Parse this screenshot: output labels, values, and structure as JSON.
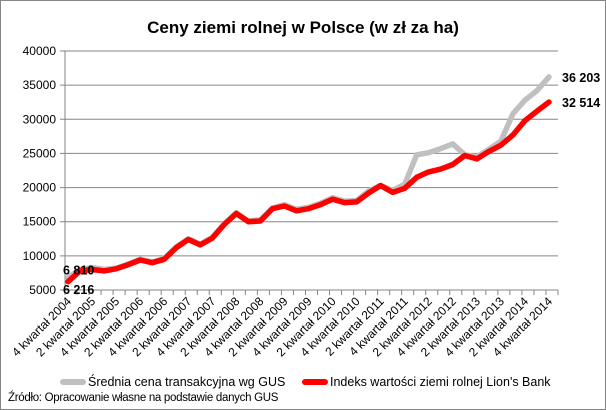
{
  "chart_data": {
    "type": "line",
    "title": "Ceny ziemi rolnej w Polsce (w zł za ha)",
    "xlabel": "",
    "ylabel": "",
    "ylim": [
      5000,
      40000
    ],
    "yticks": [
      "5000",
      "10000",
      "15000",
      "20000",
      "25000",
      "30000",
      "35000",
      "40000"
    ],
    "grid": true,
    "legend_position": "bottom",
    "x_tick_labels": [
      "4 kwartał 2004",
      "2 kwartał 2005",
      "4 kwartał 2005",
      "2 kwartał 2006",
      "4 kwartał 2006",
      "2 kwartał 2007",
      "4 kwartał 2007",
      "2 kwartał 2008",
      "4 kwartał 2008",
      "2 kwartał 2009",
      "4 kwartał 2009",
      "2 kwartał 2010",
      "4 kwartał 2010",
      "2 kwartał 2011",
      "4 kwartał 2011",
      "2 kwartał 2012",
      "4 kwartał 2012",
      "2 kwartał 2013",
      "4 kwartał 2013",
      "2 kwartał 2014",
      "4 kwartał 2014"
    ],
    "x": [
      "Q4 2004",
      "Q1 2005",
      "Q2 2005",
      "Q3 2005",
      "Q4 2005",
      "Q1 2006",
      "Q2 2006",
      "Q3 2006",
      "Q4 2006",
      "Q1 2007",
      "Q2 2007",
      "Q3 2007",
      "Q4 2007",
      "Q1 2008",
      "Q2 2008",
      "Q3 2008",
      "Q4 2008",
      "Q1 2009",
      "Q2 2009",
      "Q3 2009",
      "Q4 2009",
      "Q1 2010",
      "Q2 2010",
      "Q3 2010",
      "Q4 2010",
      "Q1 2011",
      "Q2 2011",
      "Q3 2011",
      "Q4 2011",
      "Q1 2012",
      "Q2 2012",
      "Q3 2012",
      "Q4 2012",
      "Q1 2013",
      "Q2 2013",
      "Q3 2013",
      "Q4 2013",
      "Q1 2014",
      "Q2 2014",
      "Q3 2014",
      "Q4 2014"
    ],
    "series": [
      {
        "name": "Średnia cena transakcyjna wg GUS",
        "color": "#c0c0c0",
        "values": [
          6810,
          8000,
          8300,
          8000,
          8200,
          8800,
          9500,
          9100,
          9600,
          11300,
          12500,
          11700,
          12700,
          14700,
          16300,
          15100,
          15300,
          17000,
          17500,
          16800,
          17100,
          17700,
          18500,
          18000,
          18100,
          19500,
          20300,
          19600,
          20500,
          24800,
          25100,
          25700,
          26400,
          24800,
          24500,
          25600,
          26800,
          30800,
          32800,
          34200,
          36203
        ],
        "end_label": "36 203",
        "start_label": "6 810"
      },
      {
        "name": "Indeks wartości ziemi rolnej Lion's Bank",
        "color": "#ff0000",
        "values": [
          6216,
          7800,
          8000,
          7800,
          8100,
          8700,
          9400,
          9000,
          9500,
          11200,
          12400,
          11600,
          12600,
          14600,
          16200,
          15000,
          15100,
          16900,
          17300,
          16600,
          16900,
          17500,
          18300,
          17800,
          17900,
          19200,
          20300,
          19300,
          19900,
          21500,
          22300,
          22700,
          23400,
          24700,
          24200,
          25300,
          26200,
          27700,
          29800,
          31200,
          32514
        ],
        "end_label": "32 514",
        "start_label": "6 216"
      }
    ]
  },
  "legend": {
    "gus": "Średnia cena transakcyjna wg GUS",
    "lions": "Indeks wartości ziemi rolnej Lion's Bank"
  },
  "source": "Źródło: Opracowanie własne na podstawie danych GUS",
  "colors": {
    "gus": "#c0c0c0",
    "lions": "#ff0000",
    "grid": "#868686"
  }
}
